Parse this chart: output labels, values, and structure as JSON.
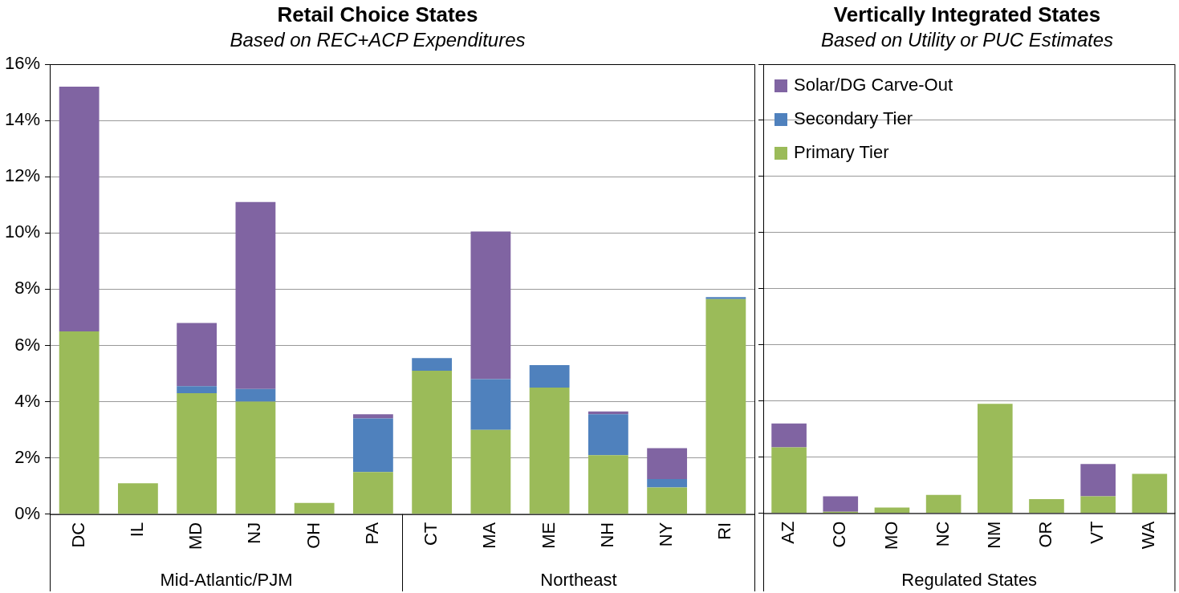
{
  "chart_data": [
    {
      "type": "bar",
      "title": "Retail Choice States",
      "subtitle": "Based on REC+ACP Expenditures",
      "stacked": true,
      "grid": "y",
      "legend": false,
      "categories": [
        "DC",
        "IL",
        "MD",
        "NJ",
        "OH",
        "PA",
        "CT",
        "MA",
        "ME",
        "NH",
        "NY",
        "RI"
      ],
      "series": [
        {
          "color": "#9bbb59",
          "values": [
            6.5,
            1.1,
            4.3,
            4.0,
            0.4,
            1.5,
            5.1,
            3.0,
            4.5,
            2.1,
            0.95,
            7.65
          ]
        },
        {
          "color": "#4f81bd",
          "values": [
            null,
            null,
            0.25,
            0.45,
            null,
            1.9,
            0.45,
            1.8,
            0.8,
            1.45,
            0.3,
            0.07
          ]
        },
        {
          "color": "#8064a2",
          "values": [
            8.7,
            null,
            2.25,
            6.65,
            null,
            0.15,
            null,
            5.25,
            null,
            0.1,
            1.1,
            null
          ]
        }
      ],
      "ylim": [
        0,
        16
      ],
      "yticks": [
        {
          "value": 0,
          "label": "0%"
        },
        {
          "value": 2,
          "label": "2%"
        },
        {
          "value": 4,
          "label": "4%"
        },
        {
          "value": 6,
          "label": "6%"
        },
        {
          "value": 8,
          "label": "8%"
        },
        {
          "value": 10,
          "label": "10%"
        },
        {
          "value": 12,
          "label": "12%"
        },
        {
          "value": 14,
          "label": "14%"
        },
        {
          "value": 16,
          "label": "16%"
        }
      ],
      "annotations": [
        "Mid-Atlantic/PJM",
        "Northeast"
      ]
    },
    {
      "type": "bar",
      "title": "Vertically Integrated States",
      "subtitle": "Based on Utility or PUC Estimates",
      "stacked": true,
      "grid": "y",
      "legend": "top left",
      "tick_labels": "x",
      "categories": [
        "AZ",
        "CO",
        "MO",
        "NC",
        "NM",
        "OR",
        "VT",
        "WA"
      ],
      "series": [
        {
          "name": "Primary Tier",
          "color": "#9bbb59",
          "values": [
            2.35,
            0.05,
            0.2,
            0.65,
            3.9,
            0.5,
            0.6,
            1.4
          ]
        },
        {
          "name": "Secondary Tier",
          "color": "#4f81bd",
          "values": [
            null,
            null,
            null,
            null,
            null,
            null,
            null,
            null
          ]
        },
        {
          "name": "Solar/DG Carve-Out",
          "color": "#8064a2",
          "values": [
            0.85,
            0.55,
            null,
            null,
            null,
            null,
            1.15,
            null
          ]
        }
      ],
      "ylim": [
        0,
        16
      ],
      "yticks": [
        {
          "value": 0,
          "label": null
        },
        {
          "value": 2,
          "label": null
        },
        {
          "value": 4,
          "label": null
        },
        {
          "value": 6,
          "label": null
        },
        {
          "value": 8,
          "label": null
        },
        {
          "value": 10,
          "label": null
        },
        {
          "value": 12,
          "label": null
        },
        {
          "value": 14,
          "label": null
        },
        {
          "value": 16,
          "label": null
        }
      ],
      "annotations": [
        "Regulated States"
      ]
    }
  ]
}
